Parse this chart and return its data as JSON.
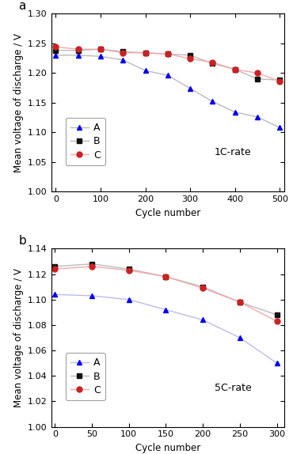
{
  "panel_a": {
    "label": "a",
    "title": "1C-rate",
    "xlabel": "Cycle number",
    "ylabel": "Mean voltage of discharge / V",
    "ylim": [
      1.0,
      1.3
    ],
    "yticks": [
      1.0,
      1.05,
      1.1,
      1.15,
      1.2,
      1.25,
      1.3
    ],
    "xlim": [
      -10,
      510
    ],
    "xticks": [
      0,
      100,
      200,
      300,
      400,
      500
    ],
    "series": {
      "A": {
        "x": [
          0,
          50,
          100,
          150,
          200,
          250,
          300,
          350,
          400,
          450,
          500
        ],
        "y": [
          1.23,
          1.23,
          1.228,
          1.222,
          1.204,
          1.196,
          1.174,
          1.152,
          1.134,
          1.126,
          1.108
        ],
        "marker_color": "#0000EE",
        "line_color": "#BBBBBB",
        "marker": "^",
        "markersize": 5
      },
      "B": {
        "x": [
          0,
          50,
          100,
          150,
          200,
          250,
          300,
          350,
          400,
          450,
          500
        ],
        "y": [
          1.238,
          1.238,
          1.24,
          1.236,
          1.234,
          1.232,
          1.23,
          1.216,
          1.206,
          1.19,
          1.188
        ],
        "marker_color": "#111111",
        "line_color": "#BBBBBB",
        "marker": "s",
        "markersize": 5
      },
      "C": {
        "x": [
          0,
          50,
          100,
          150,
          200,
          250,
          300,
          350,
          400,
          450,
          500
        ],
        "y": [
          1.244,
          1.24,
          1.24,
          1.234,
          1.234,
          1.232,
          1.224,
          1.218,
          1.206,
          1.2,
          1.186
        ],
        "marker_color": "#CC2222",
        "line_color": "#F0AAAA",
        "marker": "o",
        "markersize": 5
      }
    }
  },
  "panel_b": {
    "label": "b",
    "title": "5C-rate",
    "xlabel": "Cycle number",
    "ylabel": "Mean voltage of discharge / V",
    "ylim": [
      1.0,
      1.14
    ],
    "yticks": [
      1.0,
      1.02,
      1.04,
      1.06,
      1.08,
      1.1,
      1.12,
      1.14
    ],
    "xlim": [
      -5,
      310
    ],
    "xticks": [
      0,
      50,
      100,
      150,
      200,
      250,
      300
    ],
    "series": {
      "A": {
        "x": [
          0,
          50,
          100,
          150,
          200,
          250,
          300
        ],
        "y": [
          1.104,
          1.103,
          1.1,
          1.092,
          1.084,
          1.07,
          1.05
        ],
        "marker_color": "#0000EE",
        "line_color": "#BBBBEE",
        "marker": "^",
        "markersize": 5
      },
      "B": {
        "x": [
          0,
          50,
          100,
          150,
          200,
          250,
          300
        ],
        "y": [
          1.126,
          1.128,
          1.124,
          1.118,
          1.11,
          1.098,
          1.088
        ],
        "marker_color": "#111111",
        "line_color": "#BBBBBB",
        "marker": "s",
        "markersize": 5
      },
      "C": {
        "x": [
          0,
          50,
          100,
          150,
          200,
          250,
          300
        ],
        "y": [
          1.124,
          1.126,
          1.123,
          1.118,
          1.109,
          1.098,
          1.083
        ],
        "marker_color": "#CC2222",
        "line_color": "#F0AAAA",
        "marker": "o",
        "markersize": 5
      }
    }
  },
  "legend_order": [
    "A",
    "B",
    "C"
  ],
  "linewidth": 1.0,
  "fontsize_label": 8.5,
  "fontsize_tick": 8,
  "fontsize_legend": 9,
  "fontsize_rate": 9,
  "fontsize_panel_label": 11
}
